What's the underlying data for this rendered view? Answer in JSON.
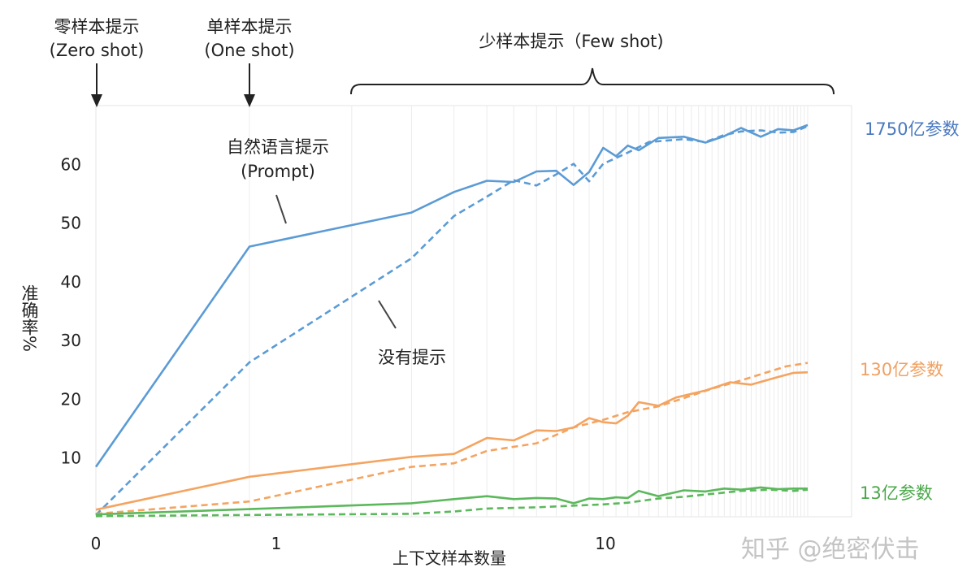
{
  "chart_data": {
    "type": "line",
    "ylabel": "准确率%",
    "xlabel": "上下文样本数量",
    "x_scale": "log (0 shown at left edge)",
    "x_ticks": [
      {
        "label": "0",
        "value": 0
      },
      {
        "label": "1",
        "value": 1
      },
      {
        "label": "10",
        "value": 10
      }
    ],
    "y_ticks": [
      10,
      20,
      30,
      40,
      50,
      60
    ],
    "ylim": [
      0,
      70
    ],
    "grid": "vertical",
    "annotations": {
      "zero_shot": [
        "零样本提示",
        "(Zero shot)"
      ],
      "one_shot": [
        "单样本提示",
        "(One shot)"
      ],
      "few_shot": "少样本提示（Few shot)",
      "prompt": [
        "自然语言提示",
        "(Prompt)"
      ],
      "no_prompt": "没有提示"
    },
    "series": [
      {
        "name": "1750亿参数",
        "style": "solid (自然语言提示)",
        "color": "#5b9bd5",
        "points": [
          [
            0,
            8.5
          ],
          [
            1,
            46
          ],
          [
            3,
            51.8
          ],
          [
            4,
            55.3
          ],
          [
            5,
            57.2
          ],
          [
            6,
            57
          ],
          [
            7,
            58.8
          ],
          [
            8,
            58.9
          ],
          [
            9,
            56.5
          ],
          [
            10,
            58.7
          ],
          [
            11,
            62.8
          ],
          [
            12,
            61.4
          ],
          [
            13,
            63.2
          ],
          [
            14,
            62.4
          ],
          [
            16,
            64.5
          ],
          [
            19,
            64.7
          ],
          [
            22,
            63.7
          ],
          [
            25,
            64.8
          ],
          [
            28,
            66.2
          ],
          [
            32,
            64.7
          ],
          [
            36,
            66
          ],
          [
            40,
            65.8
          ],
          [
            44,
            66.7
          ]
        ]
      },
      {
        "name": "1750亿参数",
        "style": "dashed (没有提示)",
        "color": "#5b9bd5",
        "points": [
          [
            0,
            0.3
          ],
          [
            1,
            26.3
          ],
          [
            3,
            44
          ],
          [
            4,
            51.2
          ],
          [
            5,
            54.5
          ],
          [
            6,
            57.3
          ],
          [
            7,
            56.4
          ],
          [
            8,
            58.3
          ],
          [
            9,
            60.1
          ],
          [
            10,
            57.1
          ],
          [
            11,
            60.1
          ],
          [
            13,
            62
          ],
          [
            15,
            63.8
          ],
          [
            19,
            64.3
          ],
          [
            22,
            63.8
          ],
          [
            25,
            65
          ],
          [
            28,
            65.6
          ],
          [
            32,
            65.8
          ],
          [
            36,
            65.4
          ],
          [
            40,
            65.5
          ],
          [
            44,
            66.5
          ]
        ]
      },
      {
        "name": "130亿参数",
        "style": "solid (自然语言提示)",
        "color": "#f4a460",
        "points": [
          [
            0,
            1.2
          ],
          [
            1,
            6.8
          ],
          [
            3,
            10.2
          ],
          [
            4,
            10.7
          ],
          [
            5,
            13.4
          ],
          [
            6,
            13
          ],
          [
            7,
            14.7
          ],
          [
            8,
            14.6
          ],
          [
            9,
            15.2
          ],
          [
            10,
            16.8
          ],
          [
            11,
            16.1
          ],
          [
            12,
            15.9
          ],
          [
            13,
            17.2
          ],
          [
            14,
            19.5
          ],
          [
            16,
            18.9
          ],
          [
            18,
            20.3
          ],
          [
            22,
            21.5
          ],
          [
            26,
            22.9
          ],
          [
            30,
            22.5
          ],
          [
            36,
            23.8
          ],
          [
            40,
            24.5
          ],
          [
            44,
            24.6
          ]
        ]
      },
      {
        "name": "130亿参数",
        "style": "dashed (没有提示)",
        "color": "#f4a460",
        "points": [
          [
            0,
            0.5
          ],
          [
            1,
            2.6
          ],
          [
            3,
            8.5
          ],
          [
            4,
            9.1
          ],
          [
            5,
            11.2
          ],
          [
            7,
            12.5
          ],
          [
            9,
            15.2
          ],
          [
            11,
            16.5
          ],
          [
            13,
            17.8
          ],
          [
            16,
            18.8
          ],
          [
            19,
            20.2
          ],
          [
            23,
            21.8
          ],
          [
            28,
            23.2
          ],
          [
            33,
            24.5
          ],
          [
            38,
            25.6
          ],
          [
            44,
            26.2
          ]
        ]
      },
      {
        "name": "13亿参数",
        "style": "solid (自然语言提示)",
        "color": "#5cb85c",
        "points": [
          [
            0,
            0.4
          ],
          [
            1,
            1.3
          ],
          [
            3,
            2.3
          ],
          [
            4,
            3
          ],
          [
            5,
            3.5
          ],
          [
            6,
            3
          ],
          [
            7,
            3.2
          ],
          [
            8,
            3.1
          ],
          [
            9,
            2.3
          ],
          [
            10,
            3.1
          ],
          [
            11,
            3
          ],
          [
            12,
            3.3
          ],
          [
            13,
            3.2
          ],
          [
            14,
            4.4
          ],
          [
            16,
            3.5
          ],
          [
            19,
            4.5
          ],
          [
            22,
            4.3
          ],
          [
            25,
            4.8
          ],
          [
            28,
            4.6
          ],
          [
            32,
            5
          ],
          [
            36,
            4.7
          ],
          [
            40,
            4.8
          ],
          [
            44,
            4.8
          ]
        ]
      },
      {
        "name": "13亿参数",
        "style": "dashed (没有提示)",
        "color": "#5cb85c",
        "points": [
          [
            0,
            0.1
          ],
          [
            1,
            0.3
          ],
          [
            3,
            0.5
          ],
          [
            4,
            0.9
          ],
          [
            5,
            1.4
          ],
          [
            7,
            1.6
          ],
          [
            9,
            1.9
          ],
          [
            11,
            2.1
          ],
          [
            13,
            2.4
          ],
          [
            16,
            3.1
          ],
          [
            19,
            3.4
          ],
          [
            23,
            3.9
          ],
          [
            28,
            4.4
          ],
          [
            34,
            4.6
          ],
          [
            40,
            4.4
          ],
          [
            44,
            4.6
          ]
        ]
      }
    ]
  },
  "watermark": "知乎 @绝密伏击"
}
